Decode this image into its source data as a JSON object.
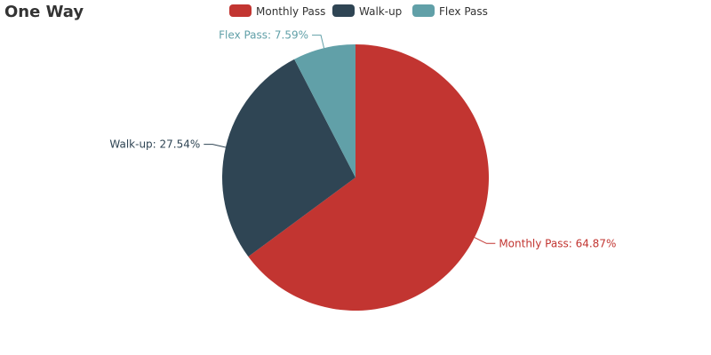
{
  "chart_data": {
    "type": "pie",
    "title": "One Way",
    "legend_position": "top-center",
    "slices": [
      {
        "name": "Monthly Pass",
        "value": 64.87,
        "label": "Monthly Pass: 64.87%",
        "color": "#c23531"
      },
      {
        "name": "Walk-up",
        "value": 27.54,
        "label": "Walk-up: 27.54%",
        "color": "#2f4554"
      },
      {
        "name": "Flex Pass",
        "value": 7.59,
        "label": "Flex Pass: 7.59%",
        "color": "#61a0a8"
      }
    ]
  }
}
